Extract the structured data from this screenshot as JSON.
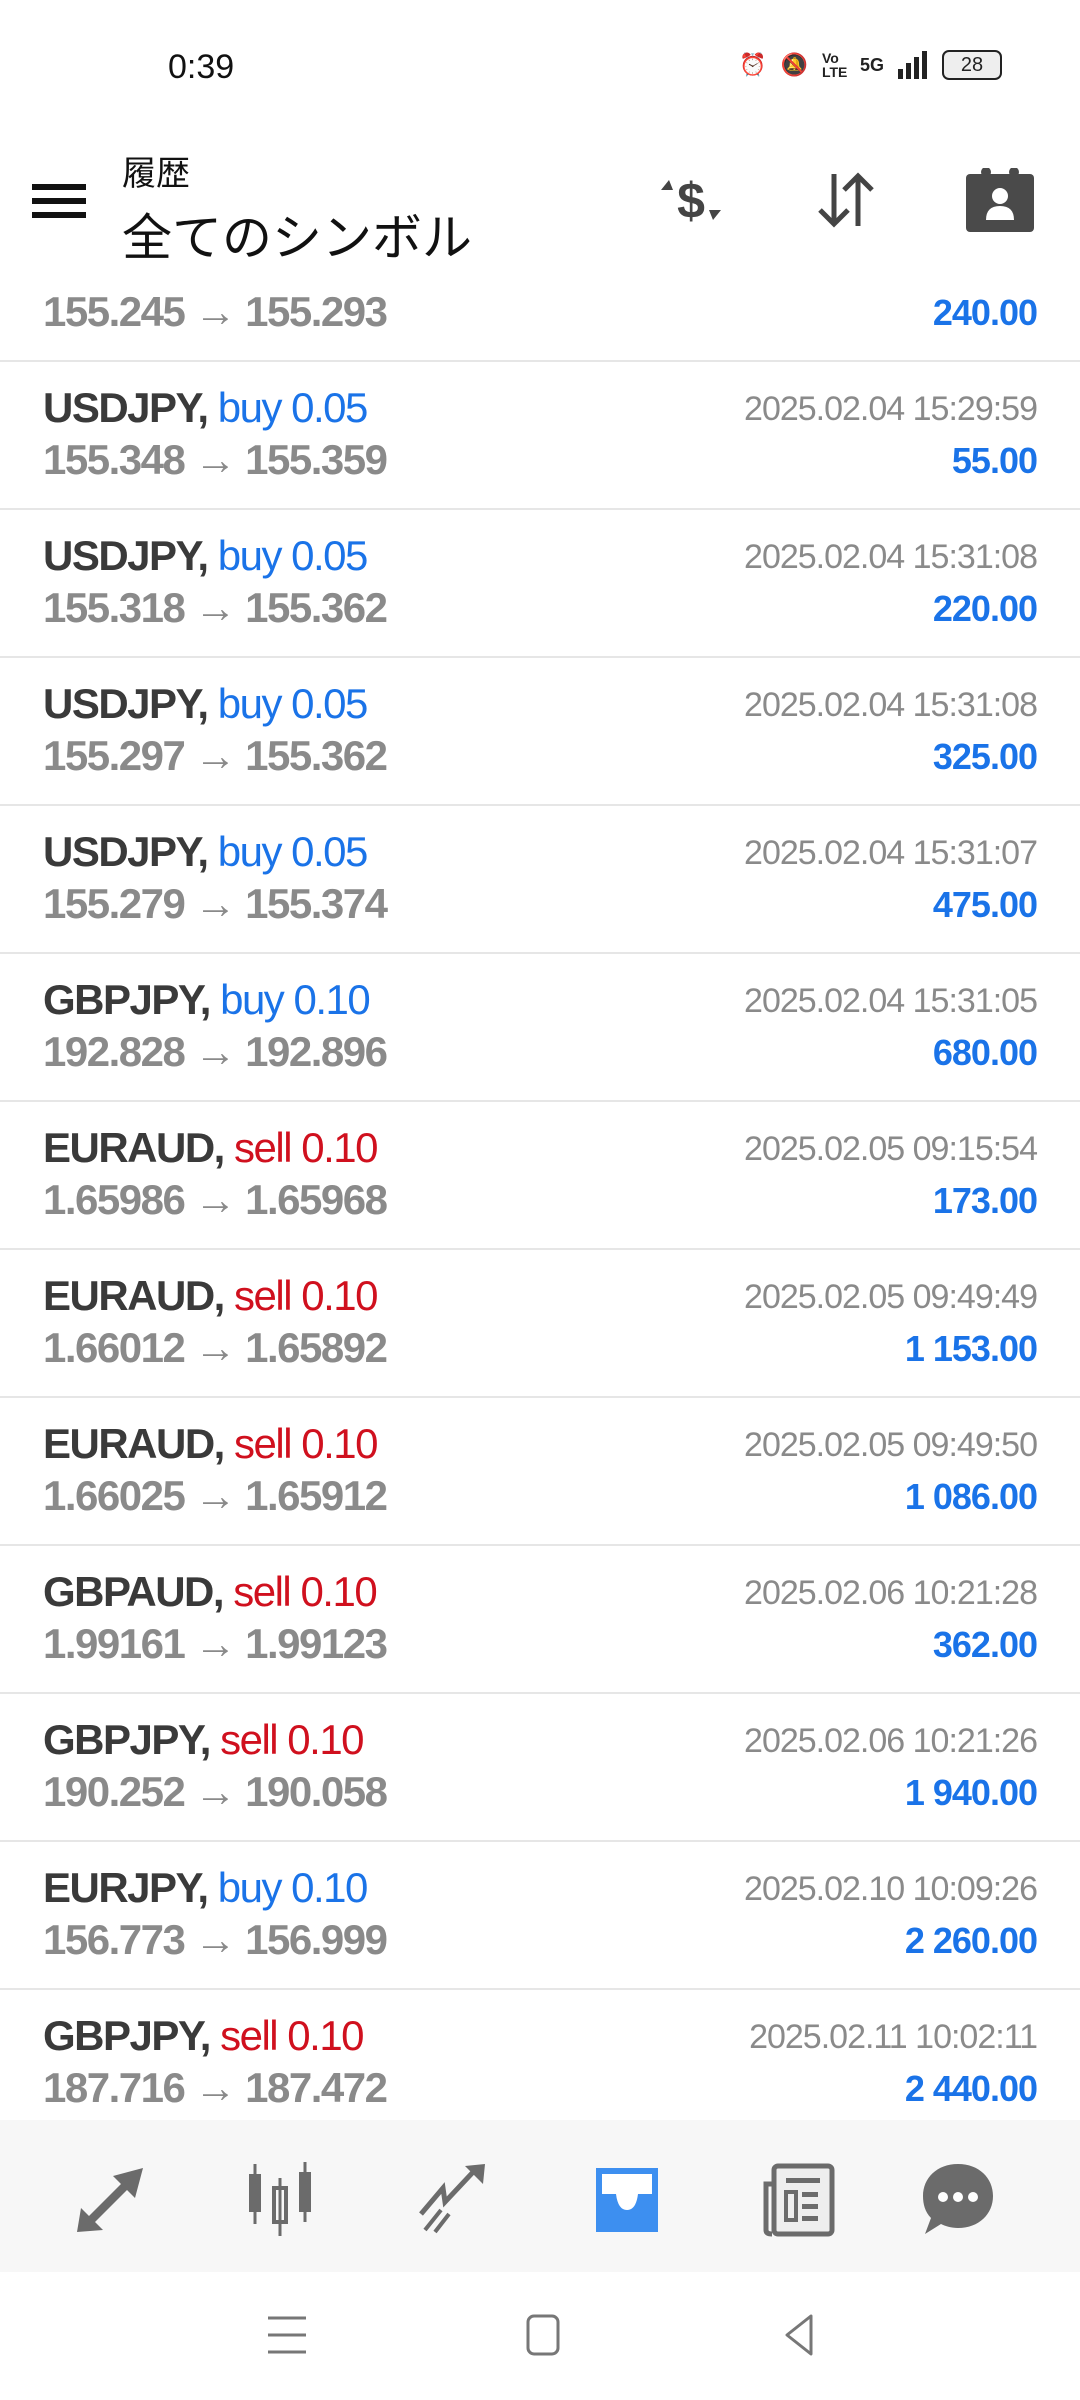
{
  "status_bar": {
    "time": "0:39",
    "network": "5G",
    "volte": "Vo LTE",
    "battery": "28"
  },
  "header": {
    "subtitle": "履歴",
    "title": "全てのシンボル"
  },
  "colors": {
    "buy": "#1a73e8",
    "sell": "#d0101e",
    "profit": "#1a73e8",
    "active_tab": "#3d8ff0"
  },
  "partial_row": {
    "prices": "155.245 → 155.293",
    "profit": "240.00"
  },
  "deals": [
    {
      "symbol": "USDJPY,",
      "side": "buy",
      "volume": "0.05",
      "prices": "155.348 → 155.359",
      "time": "2025.02.04 15:29:59",
      "profit": "55.00"
    },
    {
      "symbol": "USDJPY,",
      "side": "buy",
      "volume": "0.05",
      "prices": "155.318 → 155.362",
      "time": "2025.02.04 15:31:08",
      "profit": "220.00"
    },
    {
      "symbol": "USDJPY,",
      "side": "buy",
      "volume": "0.05",
      "prices": "155.297 → 155.362",
      "time": "2025.02.04 15:31:08",
      "profit": "325.00"
    },
    {
      "symbol": "USDJPY,",
      "side": "buy",
      "volume": "0.05",
      "prices": "155.279 → 155.374",
      "time": "2025.02.04 15:31:07",
      "profit": "475.00"
    },
    {
      "symbol": "GBPJPY,",
      "side": "buy",
      "volume": "0.10",
      "prices": "192.828 → 192.896",
      "time": "2025.02.04 15:31:05",
      "profit": "680.00"
    },
    {
      "symbol": "EURAUD,",
      "side": "sell",
      "volume": "0.10",
      "prices": "1.65986 → 1.65968",
      "time": "2025.02.05 09:15:54",
      "profit": "173.00"
    },
    {
      "symbol": "EURAUD,",
      "side": "sell",
      "volume": "0.10",
      "prices": "1.66012 → 1.65892",
      "time": "2025.02.05 09:49:49",
      "profit": "1 153.00"
    },
    {
      "symbol": "EURAUD,",
      "side": "sell",
      "volume": "0.10",
      "prices": "1.66025 → 1.65912",
      "time": "2025.02.05 09:49:50",
      "profit": "1 086.00"
    },
    {
      "symbol": "GBPAUD,",
      "side": "sell",
      "volume": "0.10",
      "prices": "1.99161 → 1.99123",
      "time": "2025.02.06 10:21:28",
      "profit": "362.00"
    },
    {
      "symbol": "GBPJPY,",
      "side": "sell",
      "volume": "0.10",
      "prices": "190.252 → 190.058",
      "time": "2025.02.06 10:21:26",
      "profit": "1 940.00"
    },
    {
      "symbol": "EURJPY,",
      "side": "buy",
      "volume": "0.10",
      "prices": "156.773 → 156.999",
      "time": "2025.02.10 10:09:26",
      "profit": "2 260.00"
    },
    {
      "symbol": "GBPJPY,",
      "side": "sell",
      "volume": "0.10",
      "prices": "187.716 → 187.472",
      "time": "2025.02.11 10:02:11",
      "profit": "2 440.00"
    }
  ],
  "bottom_nav": [
    {
      "icon": "quotes-icon"
    },
    {
      "icon": "chart-icon"
    },
    {
      "icon": "trade-icon"
    },
    {
      "icon": "history-inbox-icon",
      "active": true
    },
    {
      "icon": "news-icon"
    },
    {
      "icon": "chat-icon"
    }
  ]
}
